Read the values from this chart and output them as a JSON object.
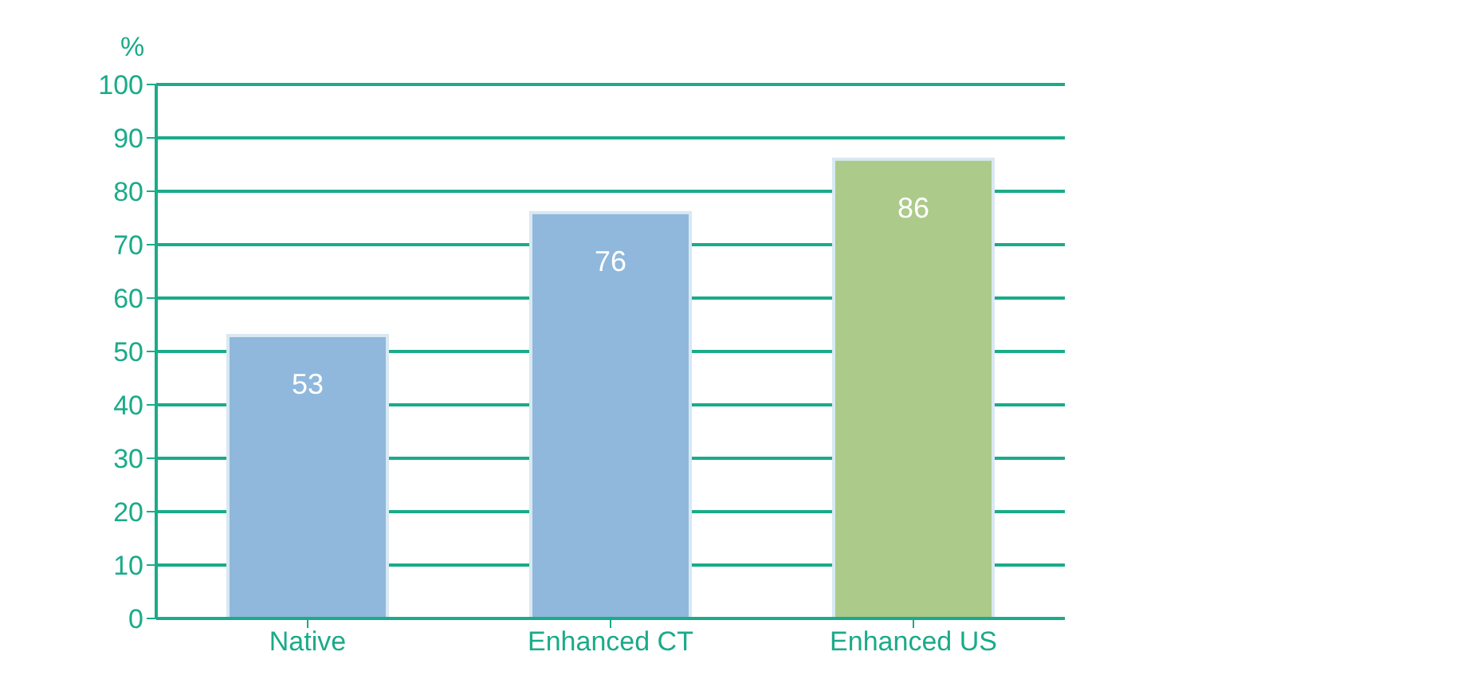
{
  "chart_data": {
    "type": "bar",
    "ylabel": "%",
    "categories": [
      "Native",
      "Enhanced CT",
      "Enhanced US"
    ],
    "values": [
      53,
      76,
      86
    ],
    "colors": [
      "#8fb8dc",
      "#8fb8dc",
      "#acca8a"
    ],
    "ylim": [
      0,
      100
    ],
    "yticks": [
      0,
      10,
      20,
      30,
      40,
      50,
      60,
      70,
      80,
      90,
      100
    ],
    "grid": "y",
    "data_labels": true
  }
}
